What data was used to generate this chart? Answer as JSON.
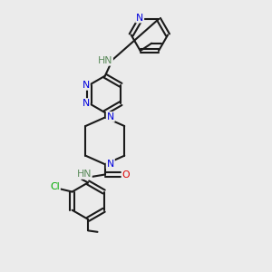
{
  "bg_color": "#ebebeb",
  "bond_color": "#1a1a1a",
  "N_color": "#0000dd",
  "O_color": "#dd0000",
  "Cl_color": "#00aa00",
  "H_color": "#5a8a5a",
  "line_width": 1.5,
  "font_size": 7.8,
  "fig_size": [
    3.0,
    3.0
  ],
  "dpi": 100,
  "xlim": [
    0,
    10
  ],
  "ylim": [
    0,
    10
  ]
}
